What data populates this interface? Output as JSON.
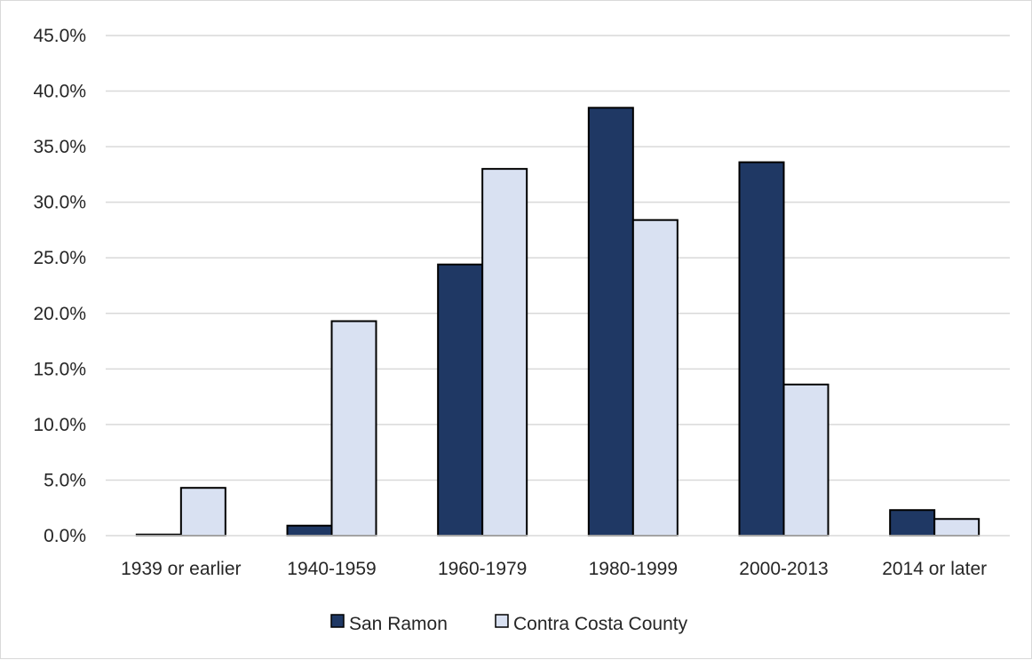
{
  "chart_data": {
    "type": "bar",
    "categories": [
      "1939 or earlier",
      "1940-1959",
      "1960-1979",
      "1980-1999",
      "2000-2013",
      "2014 or later"
    ],
    "series": [
      {
        "name": "San Ramon",
        "values": [
          0.1,
          0.9,
          24.4,
          38.5,
          33.6,
          2.3
        ],
        "color": "#1f3864"
      },
      {
        "name": "Contra Costa County",
        "values": [
          4.3,
          19.3,
          33.0,
          28.4,
          13.6,
          1.5
        ],
        "color": "#d9e1f2"
      }
    ],
    "title": "",
    "xlabel": "",
    "ylabel": "",
    "ylim": [
      0,
      45
    ],
    "y_ticks": [
      "0.0%",
      "5.0%",
      "10.0%",
      "15.0%",
      "20.0%",
      "25.0%",
      "30.0%",
      "35.0%",
      "40.0%",
      "45.0%"
    ],
    "grid": true,
    "legend_position": "bottom",
    "bar_outline_color": "#000000",
    "grid_color": "#d9d9d9"
  }
}
